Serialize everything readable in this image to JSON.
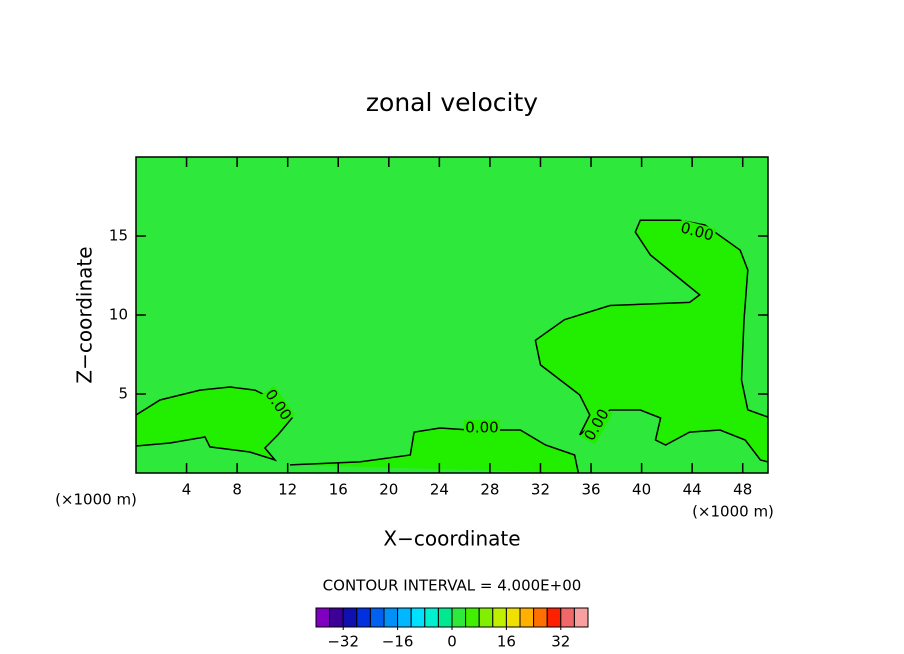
{
  "chart_data": {
    "type": "contour",
    "title": "zonal velocity",
    "x_label": "X−coordinate",
    "y_label": "Z−coordinate",
    "x_unit_left": "(×1000 m)",
    "x_unit_right": "(×1000 m)",
    "xlim": [
      0,
      50
    ],
    "ylim": [
      0,
      20
    ],
    "xticks": [
      4,
      8,
      12,
      16,
      20,
      24,
      28,
      32,
      36,
      40,
      44,
      48
    ],
    "yticks": [
      5,
      10,
      15
    ],
    "background": "#2ee83c",
    "contours": [
      {
        "level": 0,
        "label": "0.00",
        "fill": "#22ee00",
        "x": [
          0,
          1.9,
          5.06,
          7.44,
          9.41,
          11.0,
          12.34,
          11.23,
          10.2,
          11.0,
          9.0,
          5.85,
          5.46,
          2.69,
          0
        ],
        "y": [
          3.67,
          4.62,
          5.25,
          5.44,
          5.25,
          4.62,
          3.48,
          2.41,
          1.58,
          0.82,
          1.33,
          1.65,
          2.28,
          1.9,
          1.71
        ]
      },
      {
        "level": 0,
        "label": "0.00",
        "fill": "#22ee00",
        "x": [
          50,
          48.4,
          47.9,
          48.1,
          48.4,
          47.8,
          45.0,
          43.0,
          39.9,
          39.5,
          40.7,
          44.6,
          43.8,
          37.5,
          33.9,
          31.6,
          32.0,
          35.1,
          35.9,
          35.1,
          37.5,
          39.9,
          41.5,
          41.1,
          41.9,
          43.8,
          46.2,
          48.2,
          49.4,
          50
        ],
        "y": [
          3.54,
          4.0,
          5.89,
          9.68,
          12.85,
          14.1,
          15.7,
          16.0,
          16.0,
          15.25,
          13.8,
          11.27,
          10.8,
          10.6,
          9.7,
          8.4,
          6.84,
          4.94,
          3.67,
          2.41,
          3.99,
          3.99,
          3.48,
          2.09,
          1.77,
          2.59,
          2.72,
          2.09,
          0.82,
          0.7
        ]
      },
      {
        "level": 0,
        "label": "0.00",
        "fill": "#22ee00",
        "x": [
          12.18,
          17.7,
          21.7,
          22.0,
          24.05,
          26.4,
          30.4,
          32.4,
          34.7,
          35.0
        ],
        "y": [
          0.51,
          0.7,
          1.14,
          2.59,
          2.85,
          2.72,
          2.72,
          1.77,
          1.14,
          0
        ]
      }
    ],
    "contour_interval_text": "CONTOUR INTERVAL = 4.000E+00",
    "colorbar": {
      "bins": [
        -40,
        -36,
        -32,
        -28,
        -24,
        -20,
        -16,
        -12,
        -8,
        -4,
        0,
        4,
        8,
        12,
        16,
        20,
        24,
        28,
        32,
        36,
        40
      ],
      "colors": [
        "#7f00c0",
        "#3c0098",
        "#1010b0",
        "#0030e0",
        "#0060f0",
        "#0090f8",
        "#00b8ff",
        "#00e0ff",
        "#00f0d0",
        "#00e890",
        "#2ee83c",
        "#40f000",
        "#80f000",
        "#c0f000",
        "#f0e000",
        "#ffb000",
        "#ff7000",
        "#ff2000",
        "#f06868",
        "#f8a0a0"
      ],
      "ticks": [
        {
          "value": -32,
          "label": "−32"
        },
        {
          "value": -16,
          "label": "−16"
        },
        0,
        16,
        32
      ]
    }
  }
}
